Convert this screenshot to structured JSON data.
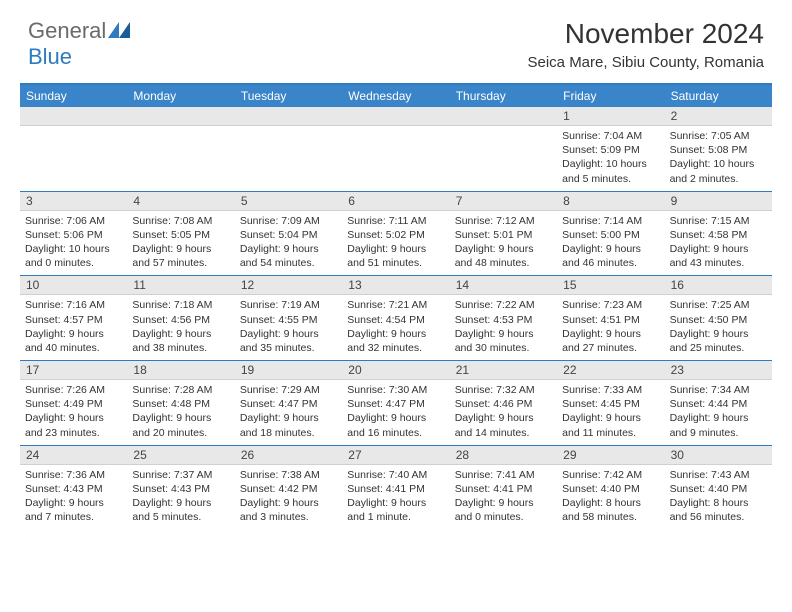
{
  "logo": {
    "general": "General",
    "blue": "Blue"
  },
  "title": "November 2024",
  "location": "Seica Mare, Sibiu County, Romania",
  "colors": {
    "header_bar": "#3a85c9",
    "rule": "#2f7bbf",
    "daynum_bg": "#e8e8e8",
    "text": "#333333",
    "logo_gray": "#6a6a6a",
    "logo_blue": "#2f7bbf"
  },
  "weekdays": [
    "Sunday",
    "Monday",
    "Tuesday",
    "Wednesday",
    "Thursday",
    "Friday",
    "Saturday"
  ],
  "weeks": [
    {
      "nums": [
        "",
        "",
        "",
        "",
        "",
        "1",
        "2"
      ],
      "cells": [
        {},
        {},
        {},
        {},
        {},
        {
          "sunrise": "Sunrise: 7:04 AM",
          "sunset": "Sunset: 5:09 PM",
          "day1": "Daylight: 10 hours",
          "day2": "and 5 minutes."
        },
        {
          "sunrise": "Sunrise: 7:05 AM",
          "sunset": "Sunset: 5:08 PM",
          "day1": "Daylight: 10 hours",
          "day2": "and 2 minutes."
        }
      ]
    },
    {
      "nums": [
        "3",
        "4",
        "5",
        "6",
        "7",
        "8",
        "9"
      ],
      "cells": [
        {
          "sunrise": "Sunrise: 7:06 AM",
          "sunset": "Sunset: 5:06 PM",
          "day1": "Daylight: 10 hours",
          "day2": "and 0 minutes."
        },
        {
          "sunrise": "Sunrise: 7:08 AM",
          "sunset": "Sunset: 5:05 PM",
          "day1": "Daylight: 9 hours",
          "day2": "and 57 minutes."
        },
        {
          "sunrise": "Sunrise: 7:09 AM",
          "sunset": "Sunset: 5:04 PM",
          "day1": "Daylight: 9 hours",
          "day2": "and 54 minutes."
        },
        {
          "sunrise": "Sunrise: 7:11 AM",
          "sunset": "Sunset: 5:02 PM",
          "day1": "Daylight: 9 hours",
          "day2": "and 51 minutes."
        },
        {
          "sunrise": "Sunrise: 7:12 AM",
          "sunset": "Sunset: 5:01 PM",
          "day1": "Daylight: 9 hours",
          "day2": "and 48 minutes."
        },
        {
          "sunrise": "Sunrise: 7:14 AM",
          "sunset": "Sunset: 5:00 PM",
          "day1": "Daylight: 9 hours",
          "day2": "and 46 minutes."
        },
        {
          "sunrise": "Sunrise: 7:15 AM",
          "sunset": "Sunset: 4:58 PM",
          "day1": "Daylight: 9 hours",
          "day2": "and 43 minutes."
        }
      ]
    },
    {
      "nums": [
        "10",
        "11",
        "12",
        "13",
        "14",
        "15",
        "16"
      ],
      "cells": [
        {
          "sunrise": "Sunrise: 7:16 AM",
          "sunset": "Sunset: 4:57 PM",
          "day1": "Daylight: 9 hours",
          "day2": "and 40 minutes."
        },
        {
          "sunrise": "Sunrise: 7:18 AM",
          "sunset": "Sunset: 4:56 PM",
          "day1": "Daylight: 9 hours",
          "day2": "and 38 minutes."
        },
        {
          "sunrise": "Sunrise: 7:19 AM",
          "sunset": "Sunset: 4:55 PM",
          "day1": "Daylight: 9 hours",
          "day2": "and 35 minutes."
        },
        {
          "sunrise": "Sunrise: 7:21 AM",
          "sunset": "Sunset: 4:54 PM",
          "day1": "Daylight: 9 hours",
          "day2": "and 32 minutes."
        },
        {
          "sunrise": "Sunrise: 7:22 AM",
          "sunset": "Sunset: 4:53 PM",
          "day1": "Daylight: 9 hours",
          "day2": "and 30 minutes."
        },
        {
          "sunrise": "Sunrise: 7:23 AM",
          "sunset": "Sunset: 4:51 PM",
          "day1": "Daylight: 9 hours",
          "day2": "and 27 minutes."
        },
        {
          "sunrise": "Sunrise: 7:25 AM",
          "sunset": "Sunset: 4:50 PM",
          "day1": "Daylight: 9 hours",
          "day2": "and 25 minutes."
        }
      ]
    },
    {
      "nums": [
        "17",
        "18",
        "19",
        "20",
        "21",
        "22",
        "23"
      ],
      "cells": [
        {
          "sunrise": "Sunrise: 7:26 AM",
          "sunset": "Sunset: 4:49 PM",
          "day1": "Daylight: 9 hours",
          "day2": "and 23 minutes."
        },
        {
          "sunrise": "Sunrise: 7:28 AM",
          "sunset": "Sunset: 4:48 PM",
          "day1": "Daylight: 9 hours",
          "day2": "and 20 minutes."
        },
        {
          "sunrise": "Sunrise: 7:29 AM",
          "sunset": "Sunset: 4:47 PM",
          "day1": "Daylight: 9 hours",
          "day2": "and 18 minutes."
        },
        {
          "sunrise": "Sunrise: 7:30 AM",
          "sunset": "Sunset: 4:47 PM",
          "day1": "Daylight: 9 hours",
          "day2": "and 16 minutes."
        },
        {
          "sunrise": "Sunrise: 7:32 AM",
          "sunset": "Sunset: 4:46 PM",
          "day1": "Daylight: 9 hours",
          "day2": "and 14 minutes."
        },
        {
          "sunrise": "Sunrise: 7:33 AM",
          "sunset": "Sunset: 4:45 PM",
          "day1": "Daylight: 9 hours",
          "day2": "and 11 minutes."
        },
        {
          "sunrise": "Sunrise: 7:34 AM",
          "sunset": "Sunset: 4:44 PM",
          "day1": "Daylight: 9 hours",
          "day2": "and 9 minutes."
        }
      ]
    },
    {
      "nums": [
        "24",
        "25",
        "26",
        "27",
        "28",
        "29",
        "30"
      ],
      "cells": [
        {
          "sunrise": "Sunrise: 7:36 AM",
          "sunset": "Sunset: 4:43 PM",
          "day1": "Daylight: 9 hours",
          "day2": "and 7 minutes."
        },
        {
          "sunrise": "Sunrise: 7:37 AM",
          "sunset": "Sunset: 4:43 PM",
          "day1": "Daylight: 9 hours",
          "day2": "and 5 minutes."
        },
        {
          "sunrise": "Sunrise: 7:38 AM",
          "sunset": "Sunset: 4:42 PM",
          "day1": "Daylight: 9 hours",
          "day2": "and 3 minutes."
        },
        {
          "sunrise": "Sunrise: 7:40 AM",
          "sunset": "Sunset: 4:41 PM",
          "day1": "Daylight: 9 hours",
          "day2": "and 1 minute."
        },
        {
          "sunrise": "Sunrise: 7:41 AM",
          "sunset": "Sunset: 4:41 PM",
          "day1": "Daylight: 9 hours",
          "day2": "and 0 minutes."
        },
        {
          "sunrise": "Sunrise: 7:42 AM",
          "sunset": "Sunset: 4:40 PM",
          "day1": "Daylight: 8 hours",
          "day2": "and 58 minutes."
        },
        {
          "sunrise": "Sunrise: 7:43 AM",
          "sunset": "Sunset: 4:40 PM",
          "day1": "Daylight: 8 hours",
          "day2": "and 56 minutes."
        }
      ]
    }
  ]
}
